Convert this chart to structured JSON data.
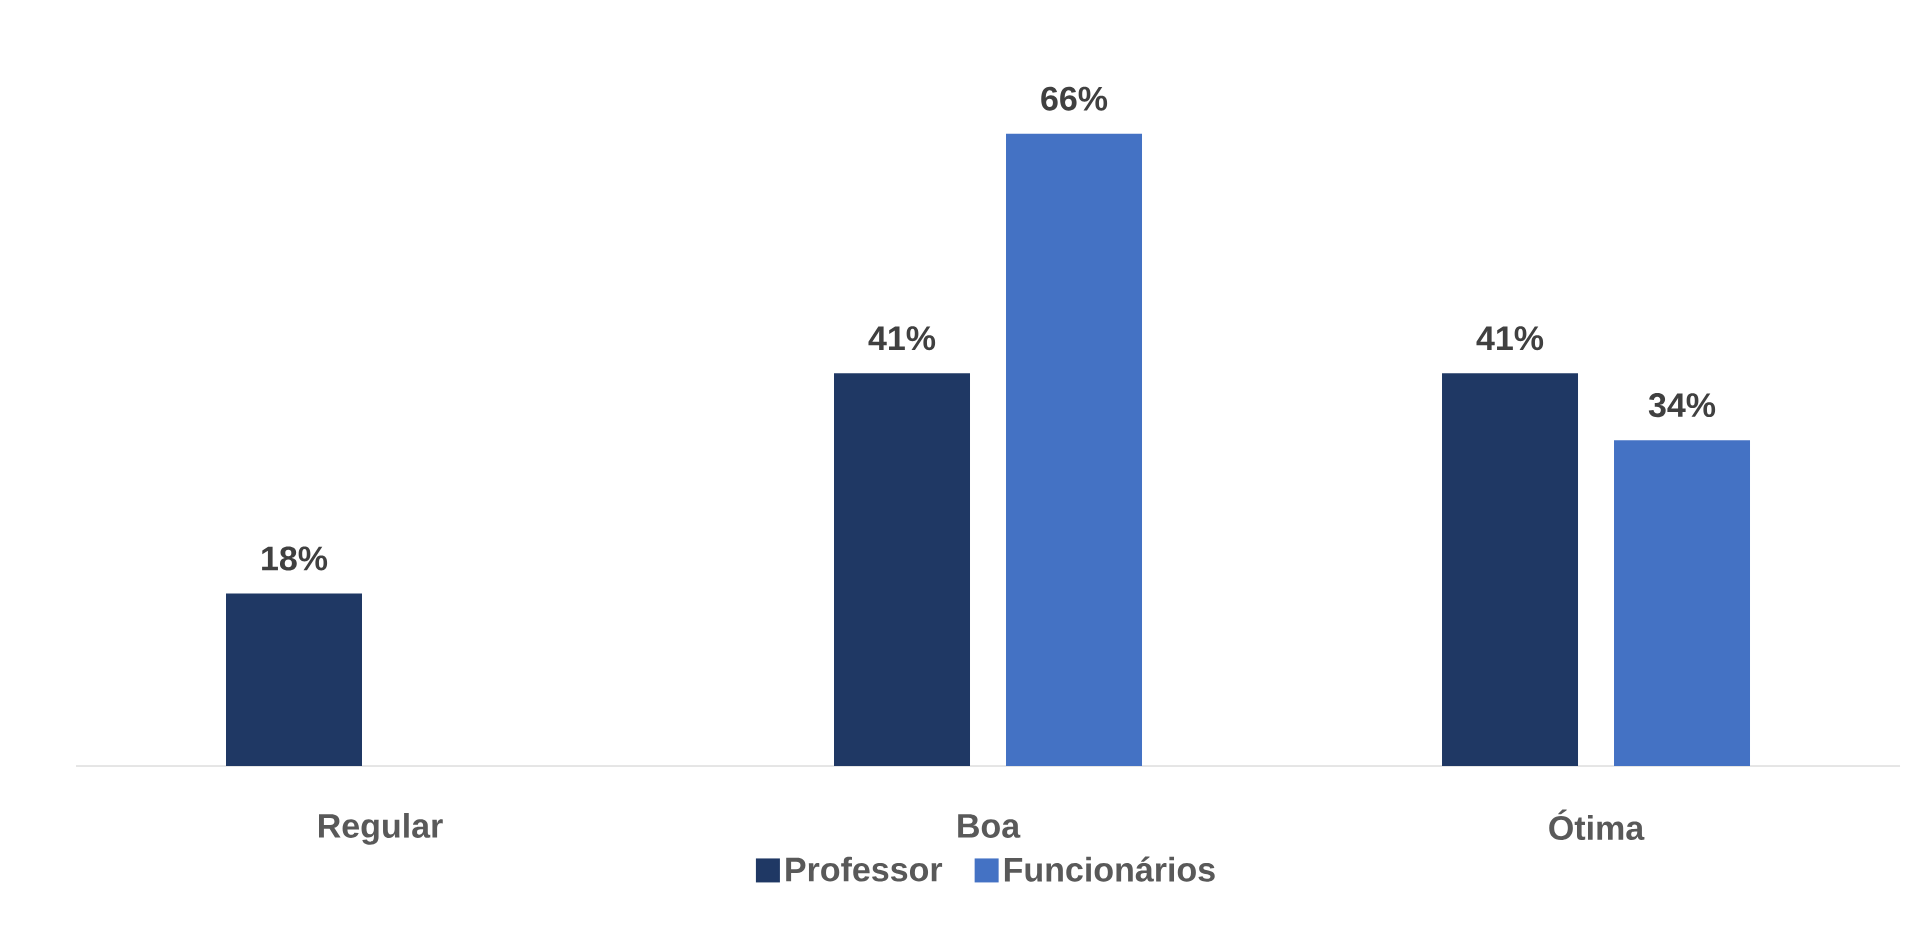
{
  "chart_data": {
    "type": "bar",
    "categories": [
      "Regular",
      "Boa",
      "Ótima"
    ],
    "series": [
      {
        "name": "Professor",
        "color": "#1f3864",
        "values": [
          18,
          41,
          41
        ],
        "value_labels": [
          "18%",
          "41%",
          "41%"
        ]
      },
      {
        "name": "Funcionários",
        "color": "#4472c4",
        "values": [
          null,
          66,
          34
        ],
        "value_labels": [
          null,
          "66%",
          "34%"
        ]
      }
    ],
    "legend": "bottom",
    "grid": false
  }
}
